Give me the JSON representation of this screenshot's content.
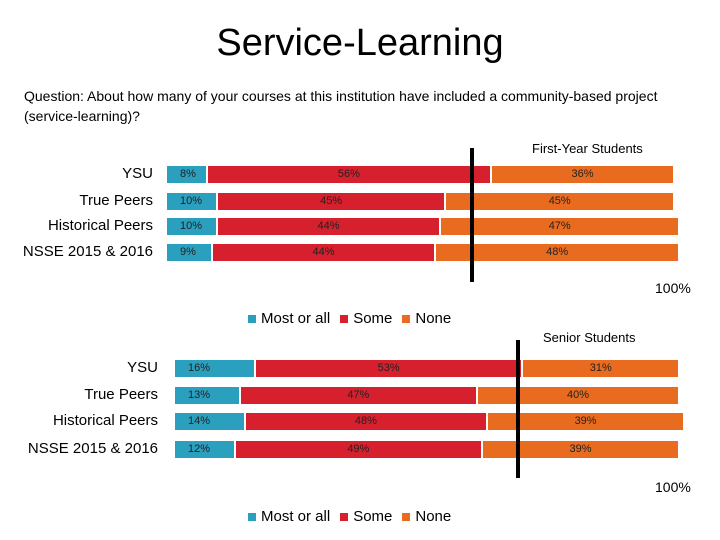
{
  "title": "Service-Learning",
  "question": "Question: About how many of your courses at this institution have included a community-based project (service-learning)?",
  "colors": {
    "most": "#2b9fbe",
    "some": "#d7202e",
    "none": "#e86b1f"
  },
  "chart_data": [
    {
      "type": "bar",
      "stacked": true,
      "orientation": "horizontal",
      "title": "First-Year Students",
      "categories": [
        "YSU",
        "True Peers",
        "Historical Peers",
        "NSSE 2015 & 2016"
      ],
      "series": [
        {
          "name": "Most or all",
          "values": [
            8,
            10,
            10,
            9
          ],
          "labels": [
            "8%",
            "10%",
            "10%",
            "9%"
          ]
        },
        {
          "name": "Some",
          "values": [
            56,
            45,
            44,
            44
          ],
          "labels": [
            "56%",
            "45%",
            "44%",
            "44%"
          ]
        },
        {
          "name": "None",
          "values": [
            36,
            45,
            47,
            48
          ],
          "labels": [
            "36%",
            "45%",
            "47%",
            "48%"
          ]
        }
      ],
      "xlim": [
        0,
        100
      ],
      "axis_end_label": "100%",
      "reference_line": 60,
      "legend": "bottom",
      "legend_labels": [
        "Most or all",
        "Some",
        "None"
      ]
    },
    {
      "type": "bar",
      "stacked": true,
      "orientation": "horizontal",
      "title": "Senior Students",
      "categories": [
        "YSU",
        "True Peers",
        "Historical Peers",
        "NSSE 2015 & 2016"
      ],
      "series": [
        {
          "name": "Most or all",
          "values": [
            16,
            13,
            14,
            12
          ],
          "labels": [
            "16%",
            "13%",
            "14%",
            "12%"
          ]
        },
        {
          "name": "Some",
          "values": [
            53,
            47,
            48,
            49
          ],
          "labels": [
            "53%",
            "47%",
            "48%",
            "49%"
          ]
        },
        {
          "name": "None",
          "values": [
            31,
            40,
            39,
            39
          ],
          "labels": [
            "31%",
            "40%",
            "39%",
            "39%"
          ]
        }
      ],
      "xlim": [
        0,
        100
      ],
      "axis_end_label": "100%",
      "reference_line": 68,
      "legend": "bottom",
      "legend_labels": [
        "Most or all",
        "Some",
        "None"
      ]
    }
  ]
}
